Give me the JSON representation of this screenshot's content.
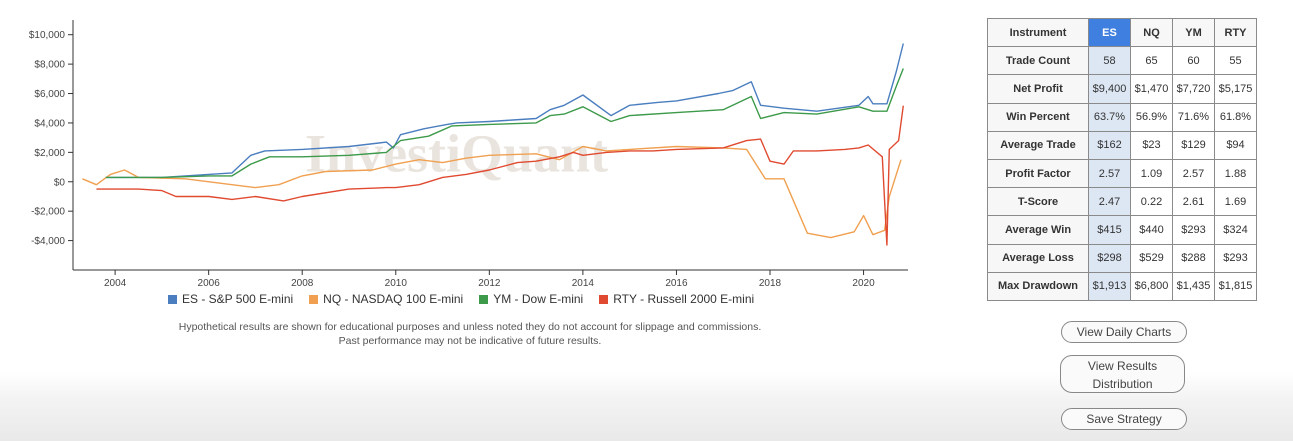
{
  "chart_data": {
    "type": "line",
    "title": "",
    "xlabel": "",
    "ylabel": "",
    "xlim": [
      2003.1,
      2020.95
    ],
    "ylim": [
      -6000,
      11000
    ],
    "x_ticks": [
      2004,
      2006,
      2008,
      2010,
      2012,
      2014,
      2016,
      2018,
      2020
    ],
    "y_ticks": [
      10000,
      8000,
      6000,
      4000,
      2000,
      0,
      -2000,
      -4000
    ],
    "y_tick_labels": [
      "$10,000",
      "$8,000",
      "$6,000",
      "$4,000",
      "$2,000",
      "$0",
      "-$2,000",
      "-$4,000"
    ],
    "grid": false,
    "legend_position": "bottom",
    "watermark": "InvestiQuant",
    "series": [
      {
        "name": "ES - S&P 500 E-mini",
        "color": "#4a7ebf",
        "points": [
          [
            2003.8,
            300
          ],
          [
            2005.0,
            300
          ],
          [
            2006.5,
            600
          ],
          [
            2006.9,
            1800
          ],
          [
            2007.2,
            2100
          ],
          [
            2008.0,
            2200
          ],
          [
            2009.0,
            2400
          ],
          [
            2009.8,
            2700
          ],
          [
            2009.95,
            2300
          ],
          [
            2010.1,
            3200
          ],
          [
            2010.6,
            3600
          ],
          [
            2011.1,
            3900
          ],
          [
            2011.3,
            4000
          ],
          [
            2012.0,
            4100
          ],
          [
            2012.5,
            4200
          ],
          [
            2013.0,
            4300
          ],
          [
            2013.3,
            4900
          ],
          [
            2013.6,
            5200
          ],
          [
            2014.0,
            5900
          ],
          [
            2014.6,
            4500
          ],
          [
            2015.0,
            5200
          ],
          [
            2015.6,
            5400
          ],
          [
            2016.0,
            5500
          ],
          [
            2016.9,
            6000
          ],
          [
            2017.2,
            6200
          ],
          [
            2017.6,
            6800
          ],
          [
            2017.8,
            5200
          ],
          [
            2018.3,
            5000
          ],
          [
            2019.0,
            4800
          ],
          [
            2019.9,
            5200
          ],
          [
            2020.1,
            5800
          ],
          [
            2020.2,
            5300
          ],
          [
            2020.5,
            5300
          ],
          [
            2020.7,
            7500
          ],
          [
            2020.85,
            9400
          ]
        ]
      },
      {
        "name": "NQ - NASDAQ 100 E-mini",
        "color": "#f0a050",
        "points": [
          [
            2003.3,
            200
          ],
          [
            2003.6,
            -200
          ],
          [
            2003.9,
            500
          ],
          [
            2004.2,
            800
          ],
          [
            2004.5,
            300
          ],
          [
            2005.5,
            200
          ],
          [
            2006.5,
            -200
          ],
          [
            2007.0,
            -400
          ],
          [
            2007.5,
            -200
          ],
          [
            2008.0,
            400
          ],
          [
            2008.5,
            700
          ],
          [
            2009.5,
            800
          ],
          [
            2010.0,
            1200
          ],
          [
            2010.5,
            1500
          ],
          [
            2011.0,
            1300
          ],
          [
            2011.5,
            1600
          ],
          [
            2012.0,
            1800
          ],
          [
            2013.0,
            1900
          ],
          [
            2013.5,
            1500
          ],
          [
            2014.0,
            2400
          ],
          [
            2014.5,
            2100
          ],
          [
            2015.0,
            2200
          ],
          [
            2016.0,
            2400
          ],
          [
            2017.0,
            2300
          ],
          [
            2017.5,
            2200
          ],
          [
            2017.9,
            200
          ],
          [
            2018.3,
            200
          ],
          [
            2018.8,
            -3500
          ],
          [
            2019.3,
            -3800
          ],
          [
            2019.8,
            -3400
          ],
          [
            2020.0,
            -2300
          ],
          [
            2020.2,
            -3600
          ],
          [
            2020.45,
            -3300
          ],
          [
            2020.55,
            -1000
          ],
          [
            2020.8,
            1500
          ]
        ]
      },
      {
        "name": "YM - Dow E-mini",
        "color": "#3d9a4a",
        "points": [
          [
            2003.8,
            300
          ],
          [
            2005.0,
            300
          ],
          [
            2006.0,
            400
          ],
          [
            2006.5,
            400
          ],
          [
            2006.9,
            1200
          ],
          [
            2007.3,
            1700
          ],
          [
            2008.0,
            1700
          ],
          [
            2009.0,
            1800
          ],
          [
            2009.8,
            2000
          ],
          [
            2010.1,
            2800
          ],
          [
            2010.7,
            3100
          ],
          [
            2011.2,
            3800
          ],
          [
            2012.0,
            3900
          ],
          [
            2013.0,
            4000
          ],
          [
            2013.3,
            4500
          ],
          [
            2013.6,
            4600
          ],
          [
            2014.0,
            5100
          ],
          [
            2014.6,
            4100
          ],
          [
            2015.0,
            4500
          ],
          [
            2016.0,
            4700
          ],
          [
            2017.0,
            4900
          ],
          [
            2017.6,
            5800
          ],
          [
            2017.8,
            4300
          ],
          [
            2018.3,
            4700
          ],
          [
            2019.0,
            4600
          ],
          [
            2019.9,
            5100
          ],
          [
            2020.2,
            4800
          ],
          [
            2020.5,
            4800
          ],
          [
            2020.7,
            6500
          ],
          [
            2020.85,
            7700
          ]
        ]
      },
      {
        "name": "RTY - Russell 2000 E-mini",
        "color": "#e04a30",
        "points": [
          [
            2003.6,
            -500
          ],
          [
            2004.5,
            -500
          ],
          [
            2005.0,
            -600
          ],
          [
            2005.3,
            -1000
          ],
          [
            2006.0,
            -1000
          ],
          [
            2006.5,
            -1200
          ],
          [
            2007.0,
            -1000
          ],
          [
            2007.6,
            -1300
          ],
          [
            2008.0,
            -1000
          ],
          [
            2009.0,
            -500
          ],
          [
            2009.8,
            -400
          ],
          [
            2010.0,
            -400
          ],
          [
            2010.5,
            -200
          ],
          [
            2011.0,
            300
          ],
          [
            2011.5,
            500
          ],
          [
            2012.0,
            800
          ],
          [
            2012.6,
            1300
          ],
          [
            2013.0,
            1400
          ],
          [
            2013.5,
            1700
          ],
          [
            2013.8,
            2000
          ],
          [
            2014.0,
            1800
          ],
          [
            2014.5,
            2000
          ],
          [
            2015.0,
            2100
          ],
          [
            2015.5,
            2100
          ],
          [
            2016.0,
            2200
          ],
          [
            2017.0,
            2300
          ],
          [
            2017.5,
            2800
          ],
          [
            2017.8,
            2900
          ],
          [
            2018.0,
            1400
          ],
          [
            2018.3,
            1200
          ],
          [
            2018.5,
            2100
          ],
          [
            2019.0,
            2100
          ],
          [
            2019.6,
            2200
          ],
          [
            2019.9,
            2300
          ],
          [
            2020.1,
            2500
          ],
          [
            2020.4,
            1700
          ],
          [
            2020.5,
            -4300
          ],
          [
            2020.55,
            2200
          ],
          [
            2020.75,
            2800
          ],
          [
            2020.85,
            5175
          ]
        ]
      }
    ]
  },
  "disclaimer": {
    "line1": "Hypothetical results are shown for educational purposes and unless noted they do not account for slippage and commissions.",
    "line2": "Past performance may not be indicative of future results."
  },
  "stats_table": {
    "header": {
      "label": "Instrument",
      "cols": [
        "ES",
        "NQ",
        "YM",
        "RTY"
      ]
    },
    "rows": [
      {
        "label": "Trade Count",
        "values": [
          "58",
          "65",
          "60",
          "55"
        ]
      },
      {
        "label": "Net Profit",
        "values": [
          "$9,400",
          "$1,470",
          "$7,720",
          "$5,175"
        ]
      },
      {
        "label": "Win Percent",
        "values": [
          "63.7%",
          "56.9%",
          "71.6%",
          "61.8%"
        ]
      },
      {
        "label": "Average Trade",
        "values": [
          "$162",
          "$23",
          "$129",
          "$94"
        ]
      },
      {
        "label": "Profit Factor",
        "values": [
          "2.57",
          "1.09",
          "2.57",
          "1.88"
        ]
      },
      {
        "label": "T-Score",
        "values": [
          "2.47",
          "0.22",
          "2.61",
          "1.69"
        ]
      },
      {
        "label": "Average Win",
        "values": [
          "$415",
          "$440",
          "$293",
          "$324"
        ]
      },
      {
        "label": "Average Loss",
        "values": [
          "$298",
          "$529",
          "$288",
          "$293"
        ]
      },
      {
        "label": "Max Drawdown",
        "values": [
          "$1,913",
          "$6,800",
          "$1,435",
          "$1,815"
        ]
      }
    ]
  },
  "buttons": {
    "daily_charts": "View Daily Charts",
    "results_line1": "View Results",
    "results_line2": "Distribution",
    "save_strategy": "Save Strategy"
  }
}
